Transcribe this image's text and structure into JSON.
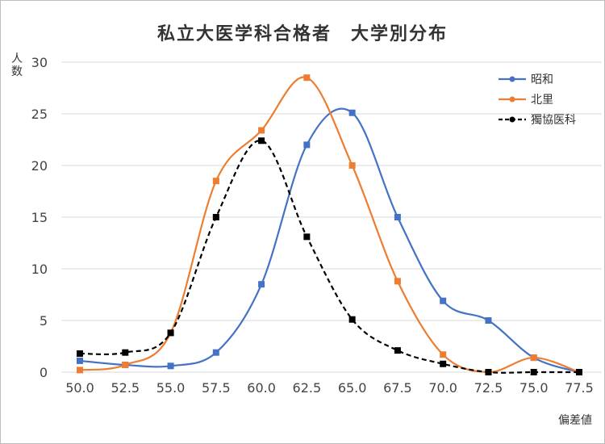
{
  "chart_data": {
    "type": "line",
    "title": "私立大医学科合格者　大学別分布",
    "xlabel": "偏差値",
    "ylabel": "人数",
    "categories": [
      "50.0",
      "52.5",
      "55.0",
      "57.5",
      "60.0",
      "62.5",
      "65.0",
      "67.5",
      "70.0",
      "72.5",
      "75.0",
      "77.5"
    ],
    "x": [
      50.0,
      52.5,
      55.0,
      57.5,
      60.0,
      62.5,
      65.0,
      67.5,
      70.0,
      72.5,
      75.0,
      77.5
    ],
    "ylim": [
      0,
      30
    ],
    "yticks": [
      "0",
      "5",
      "10",
      "15",
      "20",
      "25",
      "30"
    ],
    "grid": "horizontal",
    "legend": "top-right",
    "series": [
      {
        "name": "昭和",
        "color": "#4472c4",
        "dashed": false,
        "values": [
          1.1,
          0.7,
          0.6,
          1.9,
          8.5,
          22,
          25.1,
          15,
          6.9,
          5,
          1.4,
          0
        ]
      },
      {
        "name": "北里",
        "color": "#ed7d31",
        "dashed": false,
        "values": [
          0.2,
          0.7,
          3.8,
          18.5,
          23.4,
          28.5,
          20,
          8.8,
          1.7,
          0,
          1.4,
          0
        ]
      },
      {
        "name": "獨協医科",
        "color": "#000000",
        "dashed": true,
        "values": [
          1.8,
          1.9,
          3.8,
          15,
          22.4,
          13.1,
          5.1,
          2.1,
          0.8,
          0,
          0,
          0
        ]
      }
    ]
  }
}
